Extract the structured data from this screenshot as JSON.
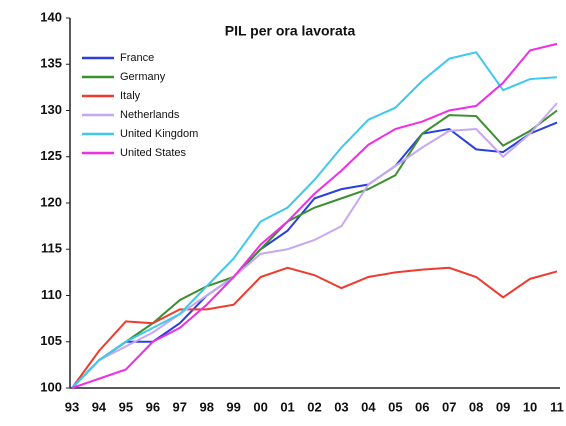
{
  "chart_data": {
    "type": "line",
    "title": "PIL per ora lavorata",
    "categories": [
      "93",
      "94",
      "95",
      "96",
      "97",
      "98",
      "99",
      "00",
      "01",
      "02",
      "03",
      "04",
      "05",
      "06",
      "07",
      "08",
      "09",
      "10",
      "11"
    ],
    "series": [
      {
        "name": "France",
        "color": "#2b3fe0",
        "values": [
          100,
          103,
          105,
          105,
          107,
          110,
          112,
          115,
          117,
          120.5,
          121.5,
          122,
          124,
          127.5,
          128,
          125.8,
          125.5,
          127.5,
          128.7
        ]
      },
      {
        "name": "Germany",
        "color": "#3a8f2e",
        "values": [
          100,
          103,
          105,
          107,
          109.5,
          111,
          112,
          115,
          118,
          119.5,
          120.5,
          121.5,
          123,
          127.5,
          129.5,
          129.4,
          126.2,
          127.8,
          130
        ]
      },
      {
        "name": "Italy",
        "color": "#ee3b2f",
        "values": [
          100,
          104,
          107.2,
          107,
          108.5,
          108.5,
          109,
          112,
          113,
          112.2,
          110.8,
          112,
          112.5,
          112.8,
          113,
          112,
          109.8,
          111.8,
          112.6
        ]
      },
      {
        "name": "Netherlands",
        "color": "#c6a8f0",
        "values": [
          100,
          103,
          104.5,
          106,
          108,
          110,
          112,
          114.5,
          115,
          116,
          117.5,
          122,
          124,
          126,
          127.8,
          128,
          125,
          127.5,
          130.8
        ]
      },
      {
        "name": "United Kingdom",
        "color": "#3fc8ee",
        "values": [
          100,
          103,
          105,
          106.5,
          108,
          111,
          114,
          118,
          119.5,
          122.5,
          126,
          129,
          130.3,
          133.2,
          135.6,
          136.3,
          132.2,
          133.4,
          133.6
        ]
      },
      {
        "name": "United States",
        "color": "#f02ee6",
        "values": [
          100,
          101,
          102,
          105,
          106.5,
          109,
          112,
          115.5,
          118,
          121,
          123.5,
          126.3,
          128,
          128.8,
          130,
          130.5,
          133,
          136.5,
          137.2
        ]
      }
    ],
    "ylim": [
      100,
      140
    ],
    "yticks": [
      100,
      105,
      110,
      115,
      120,
      125,
      130,
      135,
      140
    ],
    "grid": false,
    "legend": "top-left"
  }
}
